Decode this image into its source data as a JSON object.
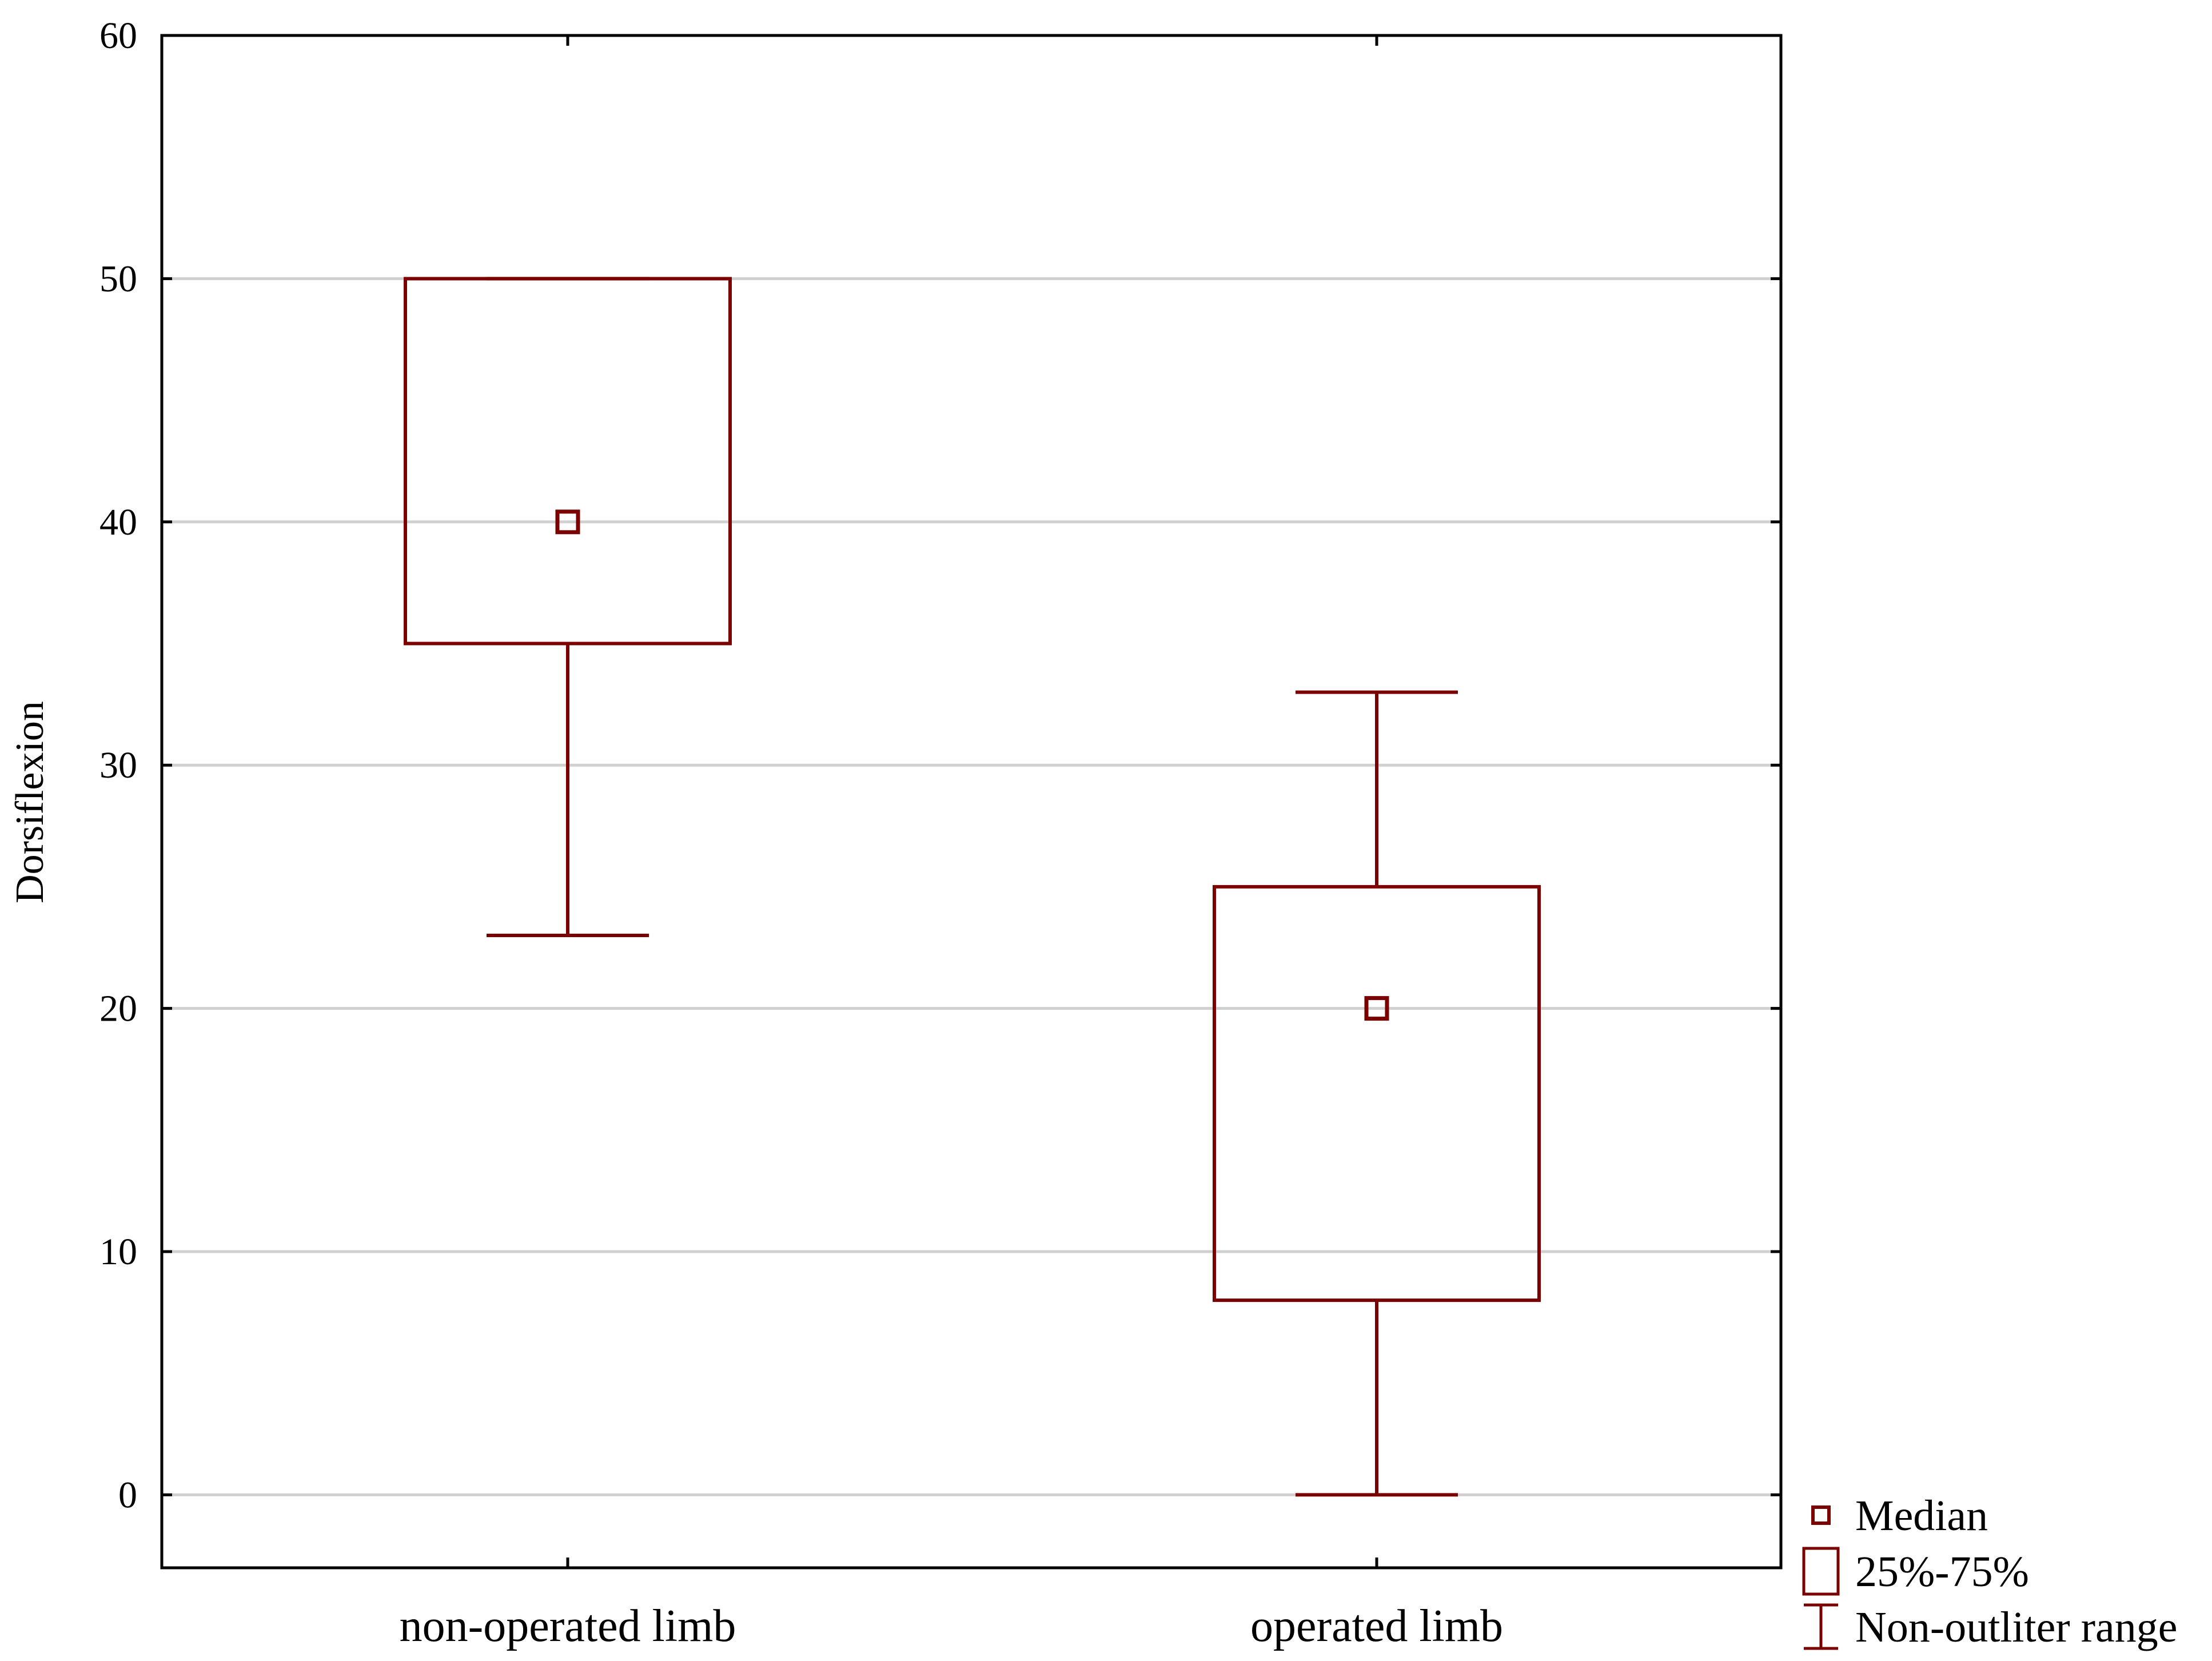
{
  "chart_data": {
    "type": "boxplot",
    "title": "",
    "xlabel": "",
    "ylabel": "Dorsiflexion",
    "ylim": [
      -3,
      60
    ],
    "yticks": [
      0,
      10,
      20,
      30,
      40,
      50,
      60
    ],
    "grid": "horizontal",
    "legend_position": "bottom-right",
    "colors": {
      "series": "#7b0000",
      "grid": "#d0d0d0",
      "axis": "#000000"
    },
    "categories": [
      "non-operated limb",
      "operated limb"
    ],
    "boxes": [
      {
        "category": "non-operated limb",
        "min": 23,
        "q1": 35,
        "median": 40,
        "q3": 50,
        "max": 50
      },
      {
        "category": "operated limb",
        "min": 0,
        "q1": 8,
        "median": 20,
        "q3": 25,
        "max": 33
      }
    ],
    "legend": [
      {
        "symbol": "small-square",
        "label": "Median"
      },
      {
        "symbol": "box",
        "label": "25%-75%"
      },
      {
        "symbol": "whisker",
        "label": "Non-outliter range"
      }
    ]
  }
}
